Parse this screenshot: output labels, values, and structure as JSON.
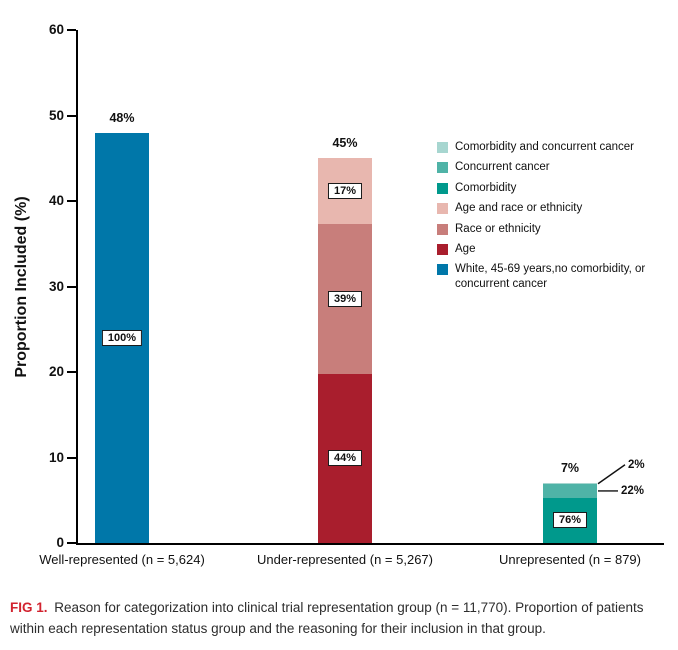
{
  "chart_data": {
    "type": "bar",
    "subtype": "stacked",
    "title": "",
    "xlabel": "",
    "ylabel": "Proportion Included (%)",
    "ylim": [
      0,
      60
    ],
    "yticks": [
      0,
      10,
      20,
      30,
      40,
      50,
      60
    ],
    "grid": false,
    "legend_position": "upper-right-inside",
    "categories": [
      "Well-represented (n = 5,624)",
      "Under-represented (n = 5,267)",
      "Unrepresented (n = 879)"
    ],
    "bars": [
      {
        "category": "Well-represented (n = 5,624)",
        "total_value": 48,
        "total_label": "48%",
        "segments": [
          {
            "name": "White, 45-69 years,no comorbidity, or concurrent cancer",
            "percent_of_group": 100,
            "label": "100%",
            "label_style": "boxed",
            "color": "#0077a9"
          }
        ]
      },
      {
        "category": "Under-represented (n = 5,267)",
        "total_value": 45,
        "total_label": "45%",
        "segments": [
          {
            "name": "Age",
            "percent_of_group": 44,
            "label": "44%",
            "label_style": "boxed",
            "color": "#a91e2d"
          },
          {
            "name": "Race or ethnicity",
            "percent_of_group": 39,
            "label": "39%",
            "label_style": "boxed",
            "color": "#c87e7b"
          },
          {
            "name": "Age and race or ethnicity",
            "percent_of_group": 17,
            "label": "17%",
            "label_style": "boxed",
            "color": "#e8b7af"
          }
        ]
      },
      {
        "category": "Unrepresented (n = 879)",
        "total_value": 7,
        "total_label": "7%",
        "segments": [
          {
            "name": "Comorbidity",
            "percent_of_group": 76,
            "label": "76%",
            "label_style": "boxed",
            "color": "#00998c"
          },
          {
            "name": "Concurrent cancer",
            "percent_of_group": 22,
            "label": "22%",
            "label_style": "callout",
            "color": "#4fb3a7"
          },
          {
            "name": "Comorbidity and concurrent cancer",
            "percent_of_group": 2,
            "label": "2%",
            "label_style": "callout",
            "color": "#a7d6d0"
          }
        ]
      }
    ],
    "legend": [
      {
        "label": "Comorbidity and concurrent cancer",
        "color": "#a7d6d0"
      },
      {
        "label": "Concurrent cancer",
        "color": "#4fb3a7"
      },
      {
        "label": "Comorbidity",
        "color": "#00998c"
      },
      {
        "label": "Age and race or ethnicity",
        "color": "#e8b7af"
      },
      {
        "label": "Race or ethnicity",
        "color": "#c87e7b"
      },
      {
        "label": "Age",
        "color": "#a91e2d"
      },
      {
        "label": "White, 45-69 years,no comorbidity, or concurrent cancer",
        "color": "#0077a9"
      }
    ]
  },
  "caption": {
    "fig_label": "FIG 1.",
    "text": "Reason for categorization into clinical trial representation group (n = 11,770). Proportion of patients within each representation status group and the reasoning for their inclusion in that group."
  }
}
